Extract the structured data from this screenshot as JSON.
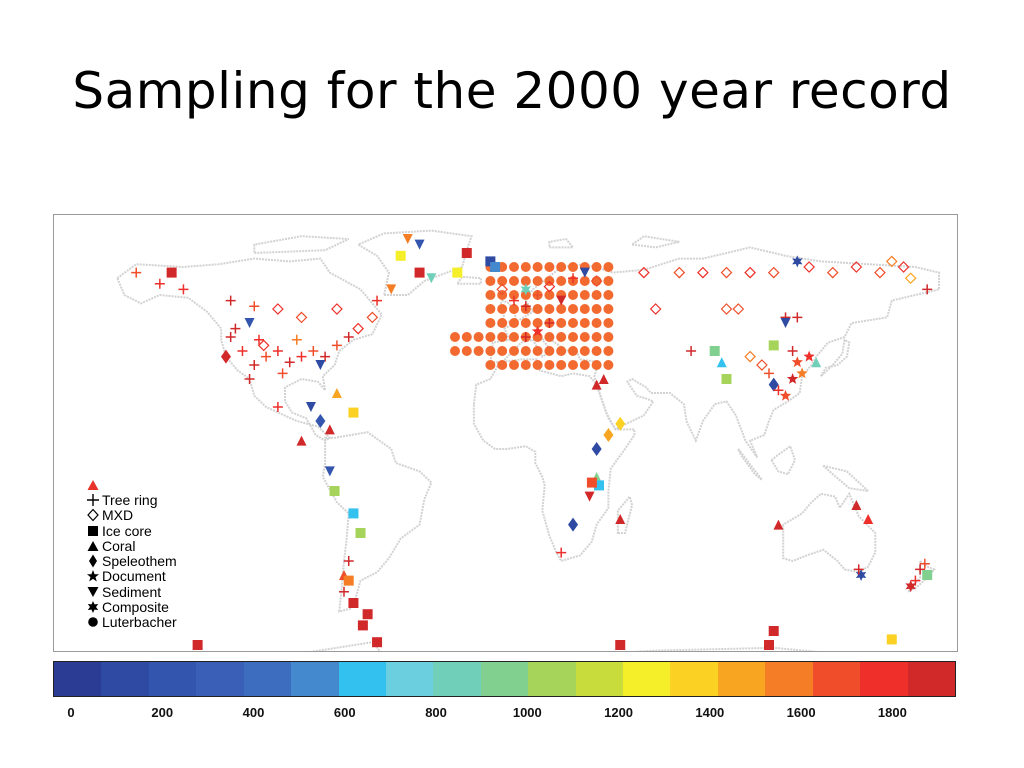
{
  "slide": {
    "title": "Sampling for the 2000 year record"
  },
  "legend": {
    "items": [
      {
        "symbol": "plus",
        "label": "Tree ring"
      },
      {
        "symbol": "diamond-open",
        "label": "MXD"
      },
      {
        "symbol": "square",
        "label": "Ice core"
      },
      {
        "symbol": "triangle-up",
        "label": "Coral"
      },
      {
        "symbol": "diamond",
        "label": "Speleothem"
      },
      {
        "symbol": "star",
        "label": "Document"
      },
      {
        "symbol": "triangle-down",
        "label": "Sediment"
      },
      {
        "symbol": "star6",
        "label": "Composite"
      },
      {
        "symbol": "circle",
        "label": "Luterbacher"
      }
    ],
    "sample_color": "#e8322a"
  },
  "colorbar": {
    "ticks": [
      "0",
      "200",
      "400",
      "600",
      "800",
      "1000",
      "1200",
      "1400",
      "1600",
      "1800"
    ],
    "tick_values": [
      0,
      200,
      400,
      600,
      800,
      1000,
      1200,
      1400,
      1600,
      1800
    ],
    "range": [
      0,
      1900
    ],
    "colors": [
      "#2b3c95",
      "#2f4aa3",
      "#3355ae",
      "#3a5fb6",
      "#3d6dbf",
      "#4489cd",
      "#33c2f0",
      "#6bcfe0",
      "#6fcfb8",
      "#82d08f",
      "#a6d45a",
      "#c8dd3c",
      "#f5ef2a",
      "#fbd224",
      "#f8a521",
      "#f57d25",
      "#f04e2a",
      "#ee2f2a",
      "#d1282a"
    ]
  },
  "map": {
    "coastline_color": "#d2d2d2",
    "luterbacher_color": "#f26a30",
    "markers": [
      {
        "lon": -120,
        "lat": 58,
        "type": "plus",
        "value": 1800
      },
      {
        "lon": -110,
        "lat": 56,
        "type": "plus",
        "value": 1650
      },
      {
        "lon": -100,
        "lat": 55,
        "type": "diamond-open",
        "value": 1700
      },
      {
        "lon": -90,
        "lat": 52,
        "type": "diamond-open",
        "value": 1600
      },
      {
        "lon": -75,
        "lat": 55,
        "type": "diamond-open",
        "value": 1700
      },
      {
        "lon": -140,
        "lat": 62,
        "type": "plus",
        "value": 1700
      },
      {
        "lon": -150,
        "lat": 64,
        "type": "plus",
        "value": 1750
      },
      {
        "lon": -160,
        "lat": 68,
        "type": "plus",
        "value": 1650
      },
      {
        "lon": -145,
        "lat": 68,
        "type": "square",
        "value": 1850
      },
      {
        "lon": -120,
        "lat": 45,
        "type": "plus",
        "value": 1800
      },
      {
        "lon": -115,
        "lat": 40,
        "type": "plus",
        "value": 1700
      },
      {
        "lon": -110,
        "lat": 35,
        "type": "plus",
        "value": 1800
      },
      {
        "lon": -105,
        "lat": 38,
        "type": "plus",
        "value": 1650
      },
      {
        "lon": -100,
        "lat": 40,
        "type": "plus",
        "value": 1750
      },
      {
        "lon": -95,
        "lat": 36,
        "type": "plus",
        "value": 1800
      },
      {
        "lon": -90,
        "lat": 38,
        "type": "plus",
        "value": 1700
      },
      {
        "lon": -85,
        "lat": 40,
        "type": "plus",
        "value": 1600
      },
      {
        "lon": -80,
        "lat": 38,
        "type": "plus",
        "value": 1800
      },
      {
        "lon": -75,
        "lat": 42,
        "type": "plus",
        "value": 1650
      },
      {
        "lon": -118,
        "lat": 48,
        "type": "plus",
        "value": 1800
      },
      {
        "lon": -108,
        "lat": 44,
        "type": "plus",
        "value": 1750
      },
      {
        "lon": -98,
        "lat": 32,
        "type": "plus",
        "value": 1650
      },
      {
        "lon": -112,
        "lat": 30,
        "type": "plus",
        "value": 1800
      },
      {
        "lon": -92,
        "lat": 44,
        "type": "plus",
        "value": 1500
      },
      {
        "lon": -106,
        "lat": 42,
        "type": "diamond-open",
        "value": 1700
      },
      {
        "lon": -112,
        "lat": 50,
        "type": "triangle-down",
        "value": 200
      },
      {
        "lon": -82,
        "lat": 35,
        "type": "triangle-down",
        "value": 100
      },
      {
        "lon": -122,
        "lat": 38,
        "type": "diamond",
        "value": 1800
      },
      {
        "lon": -70,
        "lat": 45,
        "type": "plus",
        "value": 1800
      },
      {
        "lon": -66,
        "lat": 48,
        "type": "diamond-open",
        "value": 1700
      },
      {
        "lon": -60,
        "lat": 52,
        "type": "diamond-open",
        "value": 1600
      },
      {
        "lon": -58,
        "lat": 58,
        "type": "plus",
        "value": 1700
      },
      {
        "lon": -45,
        "lat": 80,
        "type": "triangle-down",
        "value": 1500
      },
      {
        "lon": -40,
        "lat": 78,
        "type": "triangle-down",
        "value": 200
      },
      {
        "lon": -48,
        "lat": 74,
        "type": "square",
        "value": 1200
      },
      {
        "lon": -40,
        "lat": 68,
        "type": "square",
        "value": 1800
      },
      {
        "lon": -52,
        "lat": 62,
        "type": "triangle-down",
        "value": 1500
      },
      {
        "lon": -35,
        "lat": 66,
        "type": "triangle-down",
        "value": 800
      },
      {
        "lon": -20,
        "lat": 75,
        "type": "square",
        "value": 1850
      },
      {
        "lon": -10,
        "lat": 72,
        "type": "square",
        "value": 100
      },
      {
        "lon": -8,
        "lat": 70,
        "type": "square",
        "value": 500
      },
      {
        "lon": -24,
        "lat": 68,
        "type": "square",
        "value": 1200
      },
      {
        "lon": -86,
        "lat": 20,
        "type": "triangle-down",
        "value": 100
      },
      {
        "lon": -82,
        "lat": 15,
        "type": "diamond",
        "value": 200
      },
      {
        "lon": -78,
        "lat": 12,
        "type": "triangle-up",
        "value": 1800
      },
      {
        "lon": -68,
        "lat": 18,
        "type": "square",
        "value": 1300
      },
      {
        "lon": -75,
        "lat": 25,
        "type": "triangle-up",
        "value": 1400
      },
      {
        "lon": -100,
        "lat": 20,
        "type": "plus",
        "value": 1700
      },
      {
        "lon": -90,
        "lat": 8,
        "type": "triangle-up",
        "value": 1800
      },
      {
        "lon": -78,
        "lat": -3,
        "type": "triangle-down",
        "value": 200
      },
      {
        "lon": -76,
        "lat": -10,
        "type": "square",
        "value": 1000
      },
      {
        "lon": -68,
        "lat": -18,
        "type": "square",
        "value": 600
      },
      {
        "lon": -65,
        "lat": -25,
        "type": "square",
        "value": 1000
      },
      {
        "lon": -70,
        "lat": -35,
        "type": "plus",
        "value": 1800
      },
      {
        "lon": -72,
        "lat": -40,
        "type": "triangle-up",
        "value": 1650
      },
      {
        "lon": -70,
        "lat": -42,
        "type": "square",
        "value": 1500
      },
      {
        "lon": -72,
        "lat": -46,
        "type": "plus",
        "value": 1800
      },
      {
        "lon": -68,
        "lat": -50,
        "type": "square",
        "value": 1800
      },
      {
        "lon": -62,
        "lat": -54,
        "type": "square",
        "value": 1850
      },
      {
        "lon": -64,
        "lat": -58,
        "type": "square",
        "value": 1850
      },
      {
        "lon": -58,
        "lat": -64,
        "type": "square",
        "value": 1800
      },
      {
        "lon": -134,
        "lat": -66,
        "type": "square",
        "value": 1800
      },
      {
        "lon": -5,
        "lat": 62,
        "type": "diamond-open",
        "value": 1600
      },
      {
        "lon": 0,
        "lat": 58,
        "type": "plus",
        "value": 1700
      },
      {
        "lon": 5,
        "lat": 56,
        "type": "plus",
        "value": 1800
      },
      {
        "lon": 10,
        "lat": 60,
        "type": "plus",
        "value": 1650
      },
      {
        "lon": 15,
        "lat": 63,
        "type": "diamond-open",
        "value": 1700
      },
      {
        "lon": 20,
        "lat": 58,
        "type": "triangle-down",
        "value": 1800
      },
      {
        "lon": 25,
        "lat": 66,
        "type": "plus",
        "value": 1700
      },
      {
        "lon": 30,
        "lat": 68,
        "type": "triangle-down",
        "value": 150
      },
      {
        "lon": 35,
        "lat": 65,
        "type": "diamond-open",
        "value": 1600
      },
      {
        "lon": 5,
        "lat": 45,
        "type": "plus",
        "value": 1800
      },
      {
        "lon": 10,
        "lat": 47,
        "type": "star",
        "value": 1700
      },
      {
        "lon": 15,
        "lat": 50,
        "type": "plus",
        "value": 1800
      },
      {
        "lon": 5,
        "lat": 62,
        "type": "star6",
        "value": 800
      },
      {
        "lon": 38,
        "lat": 30,
        "type": "triangle-up",
        "value": 1850
      },
      {
        "lon": 35,
        "lat": 28,
        "type": "triangle-up",
        "value": 1800
      },
      {
        "lon": 45,
        "lat": 14,
        "type": "diamond",
        "value": 1300
      },
      {
        "lon": 40,
        "lat": 10,
        "type": "diamond",
        "value": 1400
      },
      {
        "lon": 35,
        "lat": 5,
        "type": "diamond",
        "value": 100
      },
      {
        "lon": 35,
        "lat": -5,
        "type": "triangle-up",
        "value": 900
      },
      {
        "lon": 36,
        "lat": -8,
        "type": "square",
        "value": 600
      },
      {
        "lon": 33,
        "lat": -7,
        "type": "square",
        "value": 1600
      },
      {
        "lon": 32,
        "lat": -12,
        "type": "triangle-down",
        "value": 1800
      },
      {
        "lon": 25,
        "lat": -22,
        "type": "diamond",
        "value": 100
      },
      {
        "lon": 45,
        "lat": -20,
        "type": "triangle-up",
        "value": 1800
      },
      {
        "lon": 20,
        "lat": -32,
        "type": "plus",
        "value": 1700
      },
      {
        "lon": 55,
        "lat": 68,
        "type": "diamond-open",
        "value": 1700
      },
      {
        "lon": 70,
        "lat": 68,
        "type": "diamond-open",
        "value": 1600
      },
      {
        "lon": 80,
        "lat": 68,
        "type": "diamond-open",
        "value": 1700
      },
      {
        "lon": 90,
        "lat": 68,
        "type": "diamond-open",
        "value": 1650
      },
      {
        "lon": 100,
        "lat": 68,
        "type": "diamond-open",
        "value": 1700
      },
      {
        "lon": 110,
        "lat": 68,
        "type": "diamond-open",
        "value": 1600
      },
      {
        "lon": 120,
        "lat": 72,
        "type": "star6",
        "value": 100
      },
      {
        "lon": 125,
        "lat": 70,
        "type": "diamond-open",
        "value": 1700
      },
      {
        "lon": 135,
        "lat": 68,
        "type": "diamond-open",
        "value": 1650
      },
      {
        "lon": 145,
        "lat": 70,
        "type": "diamond-open",
        "value": 1700
      },
      {
        "lon": 155,
        "lat": 68,
        "type": "diamond-open",
        "value": 1600
      },
      {
        "lon": 165,
        "lat": 70,
        "type": "diamond-open",
        "value": 1700
      },
      {
        "lon": 160,
        "lat": 72,
        "type": "diamond-open",
        "value": 1500
      },
      {
        "lon": 168,
        "lat": 66,
        "type": "diamond-open",
        "value": 1400
      },
      {
        "lon": 175,
        "lat": 62,
        "type": "plus",
        "value": 1800
      },
      {
        "lon": 60,
        "lat": 55,
        "type": "diamond-open",
        "value": 1700
      },
      {
        "lon": 90,
        "lat": 55,
        "type": "diamond-open",
        "value": 1600
      },
      {
        "lon": 95,
        "lat": 55,
        "type": "diamond-open",
        "value": 1600
      },
      {
        "lon": 115,
        "lat": 52,
        "type": "plus",
        "value": 1800
      },
      {
        "lon": 120,
        "lat": 52,
        "type": "plus",
        "value": 1800
      },
      {
        "lon": 115,
        "lat": 50,
        "type": "triangle-down",
        "value": 150
      },
      {
        "lon": 75,
        "lat": 40,
        "type": "plus",
        "value": 1800
      },
      {
        "lon": 85,
        "lat": 40,
        "type": "square",
        "value": 900
      },
      {
        "lon": 88,
        "lat": 36,
        "type": "triangle-up",
        "value": 600
      },
      {
        "lon": 90,
        "lat": 30,
        "type": "square",
        "value": 1000
      },
      {
        "lon": 110,
        "lat": 42,
        "type": "square",
        "value": 1000
      },
      {
        "lon": 100,
        "lat": 38,
        "type": "diamond-open",
        "value": 1500
      },
      {
        "lon": 105,
        "lat": 35,
        "type": "diamond-open",
        "value": 1600
      },
      {
        "lon": 118,
        "lat": 40,
        "type": "plus",
        "value": 1800
      },
      {
        "lon": 120,
        "lat": 36,
        "type": "star",
        "value": 1600
      },
      {
        "lon": 122,
        "lat": 32,
        "type": "star",
        "value": 1500
      },
      {
        "lon": 125,
        "lat": 38,
        "type": "star",
        "value": 1700
      },
      {
        "lon": 128,
        "lat": 36,
        "type": "triangle-up",
        "value": 800
      },
      {
        "lon": 118,
        "lat": 30,
        "type": "star",
        "value": 1800
      },
      {
        "lon": 110,
        "lat": 28,
        "type": "diamond",
        "value": 150
      },
      {
        "lon": 112,
        "lat": 26,
        "type": "plus",
        "value": 1700
      },
      {
        "lon": 115,
        "lat": 24,
        "type": "star",
        "value": 1600
      },
      {
        "lon": 108,
        "lat": 32,
        "type": "plus",
        "value": 1650
      },
      {
        "lon": 145,
        "lat": -15,
        "type": "triangle-up",
        "value": 1800
      },
      {
        "lon": 150,
        "lat": -20,
        "type": "triangle-up",
        "value": 1700
      },
      {
        "lon": 147,
        "lat": -40,
        "type": "star6",
        "value": 150
      },
      {
        "lon": 146,
        "lat": -38,
        "type": "plus",
        "value": 1800
      },
      {
        "lon": 112,
        "lat": -22,
        "type": "triangle-up",
        "value": 1800
      },
      {
        "lon": 172,
        "lat": -38,
        "type": "plus",
        "value": 1800
      },
      {
        "lon": 175,
        "lat": -40,
        "type": "square",
        "value": 900
      },
      {
        "lon": 170,
        "lat": -42,
        "type": "plus",
        "value": 1700
      },
      {
        "lon": 168,
        "lat": -44,
        "type": "star6",
        "value": 1800
      },
      {
        "lon": 174,
        "lat": -36,
        "type": "plus",
        "value": 1650
      },
      {
        "lon": 110,
        "lat": -60,
        "type": "square",
        "value": 1800
      },
      {
        "lon": 108,
        "lat": -66,
        "type": "square",
        "value": 1850
      },
      {
        "lon": 160,
        "lat": -63,
        "type": "square",
        "value": 1300
      },
      {
        "lon": 45,
        "lat": -70,
        "type": "square",
        "value": 1850
      }
    ]
  }
}
